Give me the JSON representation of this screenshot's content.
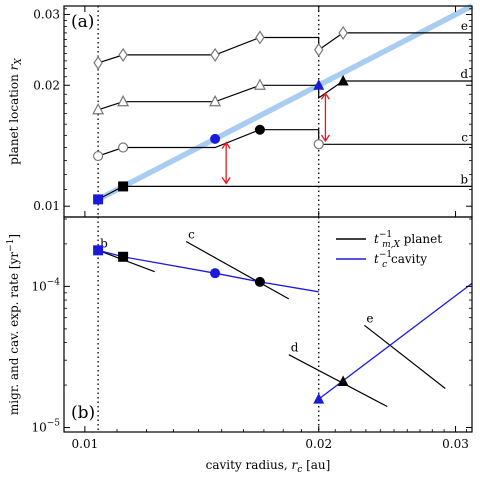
{
  "chart_data": [
    {
      "panel": "top",
      "type": "line",
      "panel_label": "(a)",
      "ylabel": "planet location r_X",
      "xlabel": "",
      "xscale": "log",
      "yscale": "log",
      "xlim": [
        0.0094,
        0.0315
      ],
      "ylim": [
        0.0094,
        0.0315
      ],
      "grid": false,
      "yticks": [
        {
          "value": 0.01,
          "label": "0.01"
        },
        {
          "value": 0.02,
          "label": "0.02"
        },
        {
          "value": 0.03,
          "label": "0.03"
        }
      ],
      "vlines": [
        0.0104,
        0.02
      ],
      "colors": {
        "diagonal": "#a8cdf0",
        "planet_line": "#000000",
        "blue_marker": "#1a1adb",
        "arrow": "#e8141e"
      },
      "diagonal": [
        [
          0.0104,
          0.0104
        ],
        [
          0.0315,
          0.0315
        ]
      ],
      "series": [
        {
          "name": "b",
          "points": [
            [
              0.0104,
              0.0104
            ],
            [
              0.0112,
              0.0112
            ],
            [
              0.0315,
              0.0112
            ]
          ]
        },
        {
          "name": "c",
          "points": [
            [
              0.0104,
              0.01333
            ],
            [
              0.0112,
              0.014
            ],
            [
              0.01471,
              0.014
            ],
            [
              0.0168,
              0.0155
            ],
            [
              0.02,
              0.0155
            ],
            [
              0.02,
              0.01426
            ],
            [
              0.0315,
              0.01426
            ]
          ]
        },
        {
          "name": "d",
          "points": [
            [
              0.0104,
              0.01738
            ],
            [
              0.0112,
              0.0182
            ],
            [
              0.01471,
              0.0182
            ],
            [
              0.0168,
              0.02
            ],
            [
              0.02,
              0.02
            ],
            [
              0.02,
              0.0186
            ],
            [
              0.0215,
              0.0205
            ],
            [
              0.0315,
              0.0205
            ]
          ]
        },
        {
          "name": "e",
          "points": [
            [
              0.0104,
              0.02273
            ],
            [
              0.0112,
              0.0238
            ],
            [
              0.01471,
              0.0238
            ],
            [
              0.0168,
              0.0263
            ],
            [
              0.02,
              0.0263
            ],
            [
              0.02,
              0.0245
            ],
            [
              0.0215,
              0.027
            ],
            [
              0.0315,
              0.027
            ]
          ]
        }
      ],
      "open_circles": [
        [
          0.0104,
          0.01333
        ],
        [
          0.0112,
          0.014
        ],
        [
          0.02,
          0.01426
        ]
      ],
      "open_triangles": [
        [
          0.0104,
          0.01738
        ],
        [
          0.0112,
          0.0182
        ],
        [
          0.01471,
          0.0182
        ],
        [
          0.0168,
          0.02
        ]
      ],
      "open_diamonds": [
        [
          0.0104,
          0.02273
        ],
        [
          0.0112,
          0.0238
        ],
        [
          0.01471,
          0.0238
        ],
        [
          0.0168,
          0.0263
        ],
        [
          0.02,
          0.0245
        ],
        [
          0.0215,
          0.027
        ]
      ],
      "filled_markers": [
        {
          "shape": "square",
          "color": "blue",
          "x": 0.0104,
          "y": 0.0104
        },
        {
          "shape": "square",
          "color": "black",
          "x": 0.0112,
          "y": 0.0112
        },
        {
          "shape": "circle",
          "color": "blue",
          "x": 0.01471,
          "y": 0.01471
        },
        {
          "shape": "circle",
          "color": "black",
          "x": 0.0168,
          "y": 0.0155
        },
        {
          "shape": "triangle",
          "color": "blue",
          "x": 0.02,
          "y": 0.02
        },
        {
          "shape": "triangle",
          "color": "black",
          "x": 0.0215,
          "y": 0.0205
        }
      ],
      "arrows": [
        {
          "x": 0.0152,
          "y1": 0.0144,
          "y2": 0.0114
        },
        {
          "x": 0.0204,
          "y1": 0.0191,
          "y2": 0.01453
        }
      ]
    },
    {
      "panel": "bottom",
      "type": "line",
      "panel_label": "(b)",
      "ylabel": "migr. and cav. exp. rate [yr^-1]",
      "xlabel": "cavity radius, r_c [au]",
      "xscale": "log",
      "yscale": "log",
      "xlim": [
        0.0094,
        0.0315
      ],
      "ylim": [
        9.3e-06,
        0.00031
      ],
      "grid": false,
      "xticks": [
        {
          "value": 0.01,
          "label": "0.01"
        },
        {
          "value": 0.02,
          "label": "0.02"
        },
        {
          "value": 0.03,
          "label": "0.03"
        }
      ],
      "yticks": [
        {
          "value": 1e-05,
          "label": "10^-5"
        },
        {
          "value": 0.0001,
          "label": "10^-4"
        }
      ],
      "vlines": [
        0.0104,
        0.02
      ],
      "legend_position": "top-right",
      "legend": [
        {
          "text_main": "t",
          "text_sub": "m,X",
          "text_sup": "−1",
          "text_tail": " planet",
          "color": "#000000"
        },
        {
          "text_main": "t",
          "text_sub": "c",
          "text_sup": "−1",
          "text_tail": " cavity",
          "color": "#1a1adb"
        }
      ],
      "planet_series": [
        {
          "name": "b",
          "points": [
            [
              0.0104,
              0.00018
            ],
            [
              0.0123,
              0.000127
            ]
          ]
        },
        {
          "name": "c",
          "points": [
            [
              0.0135,
              0.000208
            ],
            [
              0.0183,
              8.15e-05
            ]
          ]
        },
        {
          "name": "d",
          "points": [
            [
              0.0183,
              3.28e-05
            ],
            [
              0.0245,
              1.41e-05
            ]
          ]
        },
        {
          "name": "e",
          "points": [
            [
              0.0229,
              5.3e-05
            ],
            [
              0.0291,
              1.89e-05
            ]
          ]
        }
      ],
      "cavity_series": [
        {
          "points": [
            [
              0.0104,
              0.00018
            ],
            [
              0.0112,
              0.000162
            ],
            [
              0.01471,
              0.000124
            ],
            [
              0.0168,
              0.0001075
            ],
            [
              0.02,
              9.15e-05
            ]
          ]
        },
        {
          "points": [
            [
              0.02,
              1.59e-05
            ],
            [
              0.0315,
              0.000105
            ]
          ]
        }
      ],
      "filled_markers": [
        {
          "shape": "square",
          "color": "blue",
          "x": 0.0104,
          "y": 0.00018
        },
        {
          "shape": "square",
          "color": "black",
          "x": 0.0112,
          "y": 0.000162
        },
        {
          "shape": "circle",
          "color": "blue",
          "x": 0.01471,
          "y": 0.000124
        },
        {
          "shape": "circle",
          "color": "black",
          "x": 0.0168,
          "y": 0.0001075
        },
        {
          "shape": "triangle",
          "color": "blue",
          "x": 0.02,
          "y": 1.59e-05
        },
        {
          "shape": "triangle",
          "color": "black",
          "x": 0.0215,
          "y": 2.12e-05
        }
      ]
    }
  ]
}
